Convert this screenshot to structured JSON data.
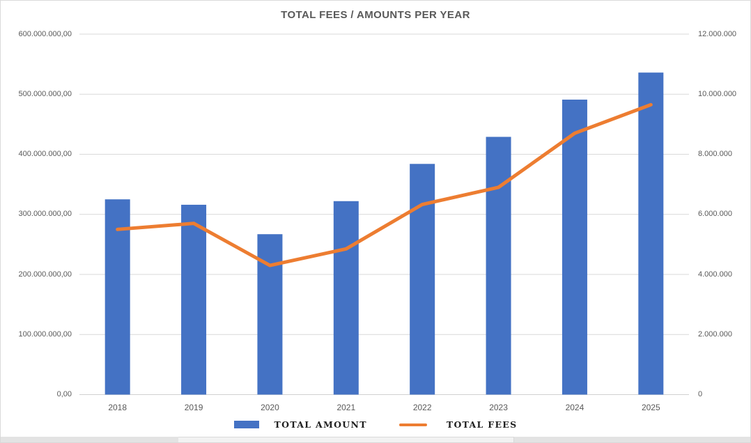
{
  "title": "TOTAL FEES / AMOUNTS PER YEAR",
  "legend": {
    "amount_label": "TOTAL AMOUNT",
    "fees_label": "TOTAL FEES"
  },
  "colors": {
    "bar": "#4472C4",
    "line": "#ED7D31",
    "grid": "#D9D9D9",
    "axis_line": "#D0D0D0",
    "axis_text": "#595959",
    "title_text": "#595959",
    "legend_text": "#1F1F1F"
  },
  "axes": {
    "left": {
      "labels": [
        "600.000.000,00",
        "500.000.000,00",
        "400.000.000,00",
        "300.000.000,00",
        "200.000.000,00",
        "100.000.000,00",
        "0,00"
      ]
    },
    "right": {
      "labels": [
        "12.000.000",
        "10.000.000",
        "8.000.000",
        "6.000.000",
        "4.000.000",
        "2.000.000",
        "0"
      ]
    },
    "x": {
      "labels": [
        "2018",
        "2019",
        "2020",
        "2021",
        "2022",
        "2023",
        "2024",
        "2025"
      ]
    }
  },
  "chart_data": {
    "type": "bar+line",
    "title": "TOTAL FEES / AMOUNTS PER YEAR",
    "categories": [
      "2018",
      "2019",
      "2020",
      "2021",
      "2022",
      "2023",
      "2024",
      "2025"
    ],
    "series": [
      {
        "name": "TOTAL AMOUNT",
        "type": "bar",
        "axis": "left",
        "values": [
          325000000,
          316000000,
          267000000,
          322000000,
          384000000,
          429000000,
          491000000,
          536000000
        ]
      },
      {
        "name": "TOTAL FEES",
        "type": "line",
        "axis": "right",
        "values": [
          5500000,
          5700000,
          4300000,
          4850000,
          6330000,
          6900000,
          8700000,
          9650000
        ]
      }
    ],
    "left_ylim": [
      0,
      600000000
    ],
    "right_ylim": [
      0,
      12000000
    ],
    "grid": true,
    "legend_position": "bottom"
  }
}
